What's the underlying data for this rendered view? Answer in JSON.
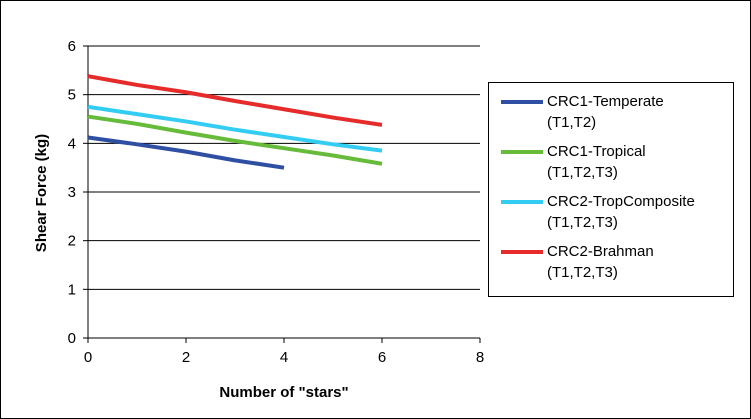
{
  "chart_data": {
    "type": "line",
    "xlabel": "Number of \"stars\"",
    "ylabel": "Shear Force (kg)",
    "xlim": [
      0,
      8
    ],
    "ylim": [
      0,
      6
    ],
    "x_ticks": [
      "0",
      "2",
      "4",
      "6",
      "8"
    ],
    "y_ticks": [
      "0",
      "1",
      "2",
      "3",
      "4",
      "5",
      "6"
    ],
    "grid": "horizontal",
    "legend_position": "right",
    "series": [
      {
        "name": "CRC1-Temperate\n(T1,T2)",
        "color": "#2F4FA2",
        "x": [
          0,
          1,
          2,
          3,
          4
        ],
        "y": [
          4.12,
          3.98,
          3.83,
          3.65,
          3.5
        ]
      },
      {
        "name": "CRC1-Tropical\n(T1,T2,T3)",
        "color": "#66BB3A",
        "x": [
          0,
          1,
          2,
          3,
          4,
          5,
          6
        ],
        "y": [
          4.55,
          4.4,
          4.22,
          4.05,
          3.9,
          3.75,
          3.58
        ]
      },
      {
        "name": "CRC2-TropComposite\n(T1,T2,T3)",
        "color": "#33CCF2",
        "x": [
          0,
          1,
          2,
          3,
          4,
          5,
          6
        ],
        "y": [
          4.75,
          4.6,
          4.45,
          4.28,
          4.13,
          3.98,
          3.85
        ]
      },
      {
        "name": "CRC2-Brahman\n(T1,T2,T3)",
        "color": "#E62B2B",
        "x": [
          0,
          1,
          2,
          3,
          4,
          5,
          6
        ],
        "y": [
          5.38,
          5.2,
          5.05,
          4.87,
          4.7,
          4.53,
          4.38
        ]
      }
    ]
  }
}
